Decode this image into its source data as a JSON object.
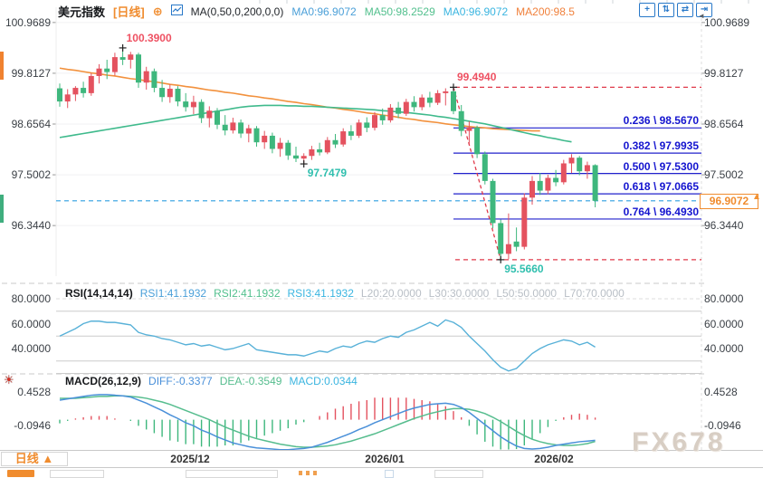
{
  "header": {
    "symbol": "美元指数",
    "timeframe": "[日线]",
    "plus_icon": "⊕",
    "ma_settings": "MA(0,50,0,200,0,0)",
    "ma_values": [
      {
        "label": "MA0:96.9072",
        "color": "#4a9fd8"
      },
      {
        "label": "MA50:98.2529",
        "color": "#53c08e"
      },
      {
        "label": "MA0:96.9072",
        "color": "#3ab5e0"
      },
      {
        "label": "MA200:98.5",
        "color": "#f0813c"
      }
    ]
  },
  "toolbar": {
    "icons": [
      {
        "name": "crosshair",
        "glyph": "+"
      },
      {
        "name": "fit-vertical",
        "glyph": "⇅"
      },
      {
        "name": "fit-horizontal",
        "glyph": "⇄"
      },
      {
        "name": "shift-right",
        "glyph": "⇥"
      }
    ]
  },
  "rsi_header": {
    "name": "RSI(14,14,14)",
    "values": [
      {
        "label": "RSI1:41.1932",
        "color": "#4a9fd8"
      },
      {
        "label": "RSI2:41.1932",
        "color": "#53c08e"
      },
      {
        "label": "RSI3:41.1932",
        "color": "#3ab5e0"
      }
    ],
    "levels": [
      {
        "label": "L20:20.0000"
      },
      {
        "label": "L30:30.0000"
      },
      {
        "label": "L50:50.0000"
      },
      {
        "label": "L70:70.0000"
      }
    ]
  },
  "macd_header": {
    "name": "MACD(26,12,9)",
    "values": [
      {
        "label": "DIFF:-0.3377",
        "color": "#4a90d9"
      },
      {
        "label": "DEA:-0.3549",
        "color": "#56bd8e"
      },
      {
        "label": "MACD:0.0344",
        "color": "#3ab5e0"
      }
    ]
  },
  "bottom_axis": {
    "timeframe_button": "日线 ▲",
    "dates": [
      {
        "label": "2025/12",
        "x": 210
      },
      {
        "label": "2026/01",
        "x": 425
      },
      {
        "label": "2026/02",
        "x": 612
      }
    ]
  },
  "watermark": "FX678",
  "chart_data": [
    {
      "type": "candlestick",
      "title": "美元指数 [日线]",
      "ylim": [
        95.2,
        101.3
      ],
      "y_ticks": [
        {
          "label": "100.9689",
          "value": 100.9689
        },
        {
          "label": "99.8127",
          "value": 99.8127
        },
        {
          "label": "98.6564",
          "value": 98.6564
        },
        {
          "label": "97.5002",
          "value": 97.5002
        },
        {
          "label": "96.3440",
          "value": 96.344
        }
      ],
      "x_ticks": [
        {
          "label": "2025/12",
          "x": 210
        },
        {
          "label": "2026/01",
          "x": 425
        },
        {
          "label": "2026/02",
          "x": 612
        }
      ],
      "colors": {
        "up": "#e4525f",
        "down": "#3eb77d",
        "ma50": "#3fba8c",
        "ma200": "#f2913d",
        "fib": "#2020cc",
        "alert": "#e0394a",
        "current": "#2f9fe0"
      },
      "candles": [
        [
          99.47,
          99.58,
          99.05,
          99.17
        ],
        [
          99.17,
          99.45,
          99.02,
          99.33
        ],
        [
          99.33,
          99.52,
          99.18,
          99.48
        ],
        [
          99.48,
          99.62,
          99.26,
          99.36
        ],
        [
          99.36,
          99.82,
          99.3,
          99.75
        ],
        [
          99.75,
          100.02,
          99.58,
          99.92
        ],
        [
          99.92,
          100.12,
          99.68,
          99.84
        ],
        [
          99.84,
          100.28,
          99.76,
          100.18
        ],
        [
          100.18,
          100.39,
          100.0,
          100.12
        ],
        [
          100.12,
          100.3,
          99.92,
          100.24
        ],
        [
          100.24,
          100.28,
          99.48,
          99.6
        ],
        [
          99.6,
          99.96,
          99.44,
          99.86
        ],
        [
          99.86,
          99.92,
          99.38,
          99.48
        ],
        [
          99.48,
          99.66,
          99.16,
          99.27
        ],
        [
          99.27,
          99.56,
          99.14,
          99.46
        ],
        [
          99.46,
          99.52,
          99.06,
          99.17
        ],
        [
          99.17,
          99.36,
          98.94,
          99.04
        ],
        [
          99.04,
          99.3,
          98.88,
          99.16
        ],
        [
          99.16,
          99.22,
          98.68,
          98.79
        ],
        [
          98.79,
          99.06,
          98.58,
          98.96
        ],
        [
          98.96,
          99.02,
          98.54,
          98.64
        ],
        [
          98.64,
          98.86,
          98.4,
          98.51
        ],
        [
          98.51,
          98.8,
          98.44,
          98.69
        ],
        [
          98.69,
          98.76,
          98.34,
          98.44
        ],
        [
          98.44,
          98.64,
          98.24,
          98.56
        ],
        [
          98.56,
          98.61,
          98.14,
          98.24
        ],
        [
          98.24,
          98.5,
          98.09,
          98.39
        ],
        [
          98.39,
          98.46,
          97.99,
          98.09
        ],
        [
          98.09,
          98.34,
          97.91,
          98.23
        ],
        [
          98.23,
          98.29,
          97.84,
          97.94
        ],
        [
          97.94,
          98.14,
          97.79,
          97.87
        ],
        [
          97.87,
          97.99,
          97.7479,
          97.93
        ],
        [
          97.93,
          98.16,
          97.84,
          98.08
        ],
        [
          98.08,
          98.23,
          97.94,
          98.01
        ],
        [
          98.01,
          98.36,
          97.97,
          98.29
        ],
        [
          98.29,
          98.43,
          98.11,
          98.19
        ],
        [
          98.19,
          98.56,
          98.14,
          98.49
        ],
        [
          98.49,
          98.63,
          98.29,
          98.39
        ],
        [
          98.39,
          98.76,
          98.34,
          98.69
        ],
        [
          98.69,
          98.81,
          98.47,
          98.57
        ],
        [
          98.57,
          98.93,
          98.51,
          98.86
        ],
        [
          98.86,
          99.01,
          98.64,
          98.74
        ],
        [
          98.74,
          99.11,
          98.69,
          99.03
        ],
        [
          99.03,
          99.16,
          98.79,
          98.89
        ],
        [
          98.89,
          99.23,
          98.84,
          99.16
        ],
        [
          99.16,
          99.29,
          98.94,
          99.04
        ],
        [
          99.04,
          99.33,
          98.97,
          99.26
        ],
        [
          99.26,
          99.39,
          99.04,
          99.14
        ],
        [
          99.14,
          99.43,
          99.09,
          99.36
        ],
        [
          99.36,
          99.47,
          99.08,
          99.4
        ],
        [
          99.4,
          99.494,
          98.88,
          98.95
        ],
        [
          98.95,
          99.09,
          98.38,
          98.5
        ],
        [
          98.5,
          98.72,
          98.2,
          98.58
        ],
        [
          98.58,
          98.62,
          97.88,
          97.97
        ],
        [
          97.97,
          98.03,
          97.28,
          97.36
        ],
        [
          97.36,
          97.41,
          96.28,
          96.4
        ],
        [
          96.4,
          96.48,
          95.566,
          95.7
        ],
        [
          95.7,
          96.62,
          95.58,
          95.92
        ],
        [
          95.98,
          96.3,
          95.76,
          95.86
        ],
        [
          95.86,
          97.08,
          95.8,
          96.98
        ],
        [
          96.98,
          97.47,
          96.82,
          97.36
        ],
        [
          97.36,
          97.54,
          97.04,
          97.14
        ],
        [
          97.14,
          97.5,
          97.06,
          97.43
        ],
        [
          97.43,
          97.61,
          97.24,
          97.33
        ],
        [
          97.33,
          97.84,
          97.28,
          97.76
        ],
        [
          97.76,
          97.97,
          97.54,
          97.89
        ],
        [
          97.89,
          97.93,
          97.49,
          97.58
        ],
        [
          97.58,
          97.8,
          97.41,
          97.72
        ],
        [
          97.72,
          97.74,
          96.76,
          96.9072
        ]
      ],
      "ma50": [
        98.35,
        98.38,
        98.41,
        98.44,
        98.47,
        98.5,
        98.53,
        98.56,
        98.59,
        98.62,
        98.65,
        98.68,
        98.71,
        98.74,
        98.77,
        98.8,
        98.83,
        98.86,
        98.89,
        98.92,
        98.95,
        98.98,
        99.01,
        99.04,
        99.06,
        99.07,
        99.08,
        99.08,
        99.08,
        99.07,
        99.07,
        99.06,
        99.06,
        99.05,
        99.04,
        99.03,
        99.02,
        99.01,
        99.0,
        98.99,
        98.98,
        98.96,
        98.95,
        98.93,
        98.92,
        98.9,
        98.88,
        98.86,
        98.83,
        98.81,
        98.78,
        98.75,
        98.72,
        98.69,
        98.66,
        98.62,
        98.58,
        98.54,
        98.5,
        98.46,
        98.42,
        98.39,
        98.35,
        98.32,
        98.28,
        98.25,
        null,
        null,
        null
      ],
      "ma200": [
        99.93,
        99.9,
        99.88,
        99.85,
        99.82,
        99.8,
        99.77,
        99.75,
        99.72,
        99.69,
        99.67,
        99.64,
        99.62,
        99.59,
        99.56,
        99.54,
        99.51,
        99.49,
        99.46,
        99.43,
        99.41,
        99.38,
        99.36,
        99.33,
        99.3,
        99.28,
        99.25,
        99.23,
        99.2,
        99.17,
        99.15,
        99.12,
        99.1,
        99.07,
        99.04,
        99.02,
        98.99,
        98.97,
        98.94,
        98.91,
        98.89,
        98.86,
        98.84,
        98.81,
        98.78,
        98.76,
        98.73,
        98.71,
        98.69,
        98.66,
        98.64,
        98.62,
        98.6,
        98.58,
        98.57,
        98.55,
        98.54,
        98.53,
        98.52,
        98.51,
        98.5,
        98.5,
        null,
        null,
        null,
        null,
        null,
        null,
        null
      ],
      "fib_levels": [
        {
          "label": "0.236 \\ 98.5670",
          "value": 98.567
        },
        {
          "label": "0.382 \\ 97.9935",
          "value": 97.9935
        },
        {
          "label": "0.500 \\ 97.5300",
          "value": 97.53
        },
        {
          "label": "0.618 \\ 97.0665",
          "value": 97.0665
        },
        {
          "label": "0.764 \\ 96.4930",
          "value": 96.493
        }
      ],
      "fib_start_candle": 50,
      "dashed_levels": [
        {
          "value": 99.494
        },
        {
          "value": 95.566
        }
      ],
      "trend_line": {
        "from_candle": 50,
        "from_price": 99.494,
        "to_candle": 56,
        "to_price": 95.566
      },
      "current_price": {
        "label": "96.9072",
        "value": 96.9072
      },
      "annotations": [
        {
          "text": "100.3900",
          "candle": 8,
          "price": 100.39,
          "position": "above",
          "color": "#ee5162"
        },
        {
          "text": "99.4940",
          "candle": 50,
          "price": 99.494,
          "position": "above",
          "color": "#ee5162"
        },
        {
          "text": "97.7479",
          "candle": 31,
          "price": 97.7479,
          "position": "below",
          "color": "#2fbfae"
        },
        {
          "text": "95.5660",
          "candle": 56,
          "price": 95.566,
          "position": "below",
          "color": "#2fbfae"
        }
      ]
    },
    {
      "type": "line",
      "name": "RSI(14,14,14)",
      "color": "#58b1d8",
      "ylim": [
        15,
        90
      ],
      "y_ticks": [
        {
          "label": "80.0000",
          "value": 80
        },
        {
          "label": "60.0000",
          "value": 60
        },
        {
          "label": "40.0000",
          "value": 40
        }
      ],
      "gridline_dashed": 80,
      "gridlines": [
        70,
        50,
        30,
        20
      ],
      "values": [
        50,
        53,
        56,
        60,
        62,
        62,
        61,
        61,
        60,
        59,
        53,
        51,
        50,
        48,
        47,
        45,
        43,
        44,
        42,
        43,
        41,
        39,
        40,
        42,
        44,
        39,
        38,
        37,
        36,
        35,
        35,
        34,
        36,
        38,
        37,
        40,
        42,
        41,
        44,
        46,
        45,
        48,
        50,
        49,
        53,
        55,
        58,
        61,
        58,
        63,
        61,
        57,
        50,
        44,
        38,
        31,
        25,
        22,
        24,
        30,
        36,
        40,
        43,
        45,
        47,
        46,
        43,
        45,
        41.19
      ]
    },
    {
      "type": "macd",
      "name": "MACD(26,12,9)",
      "colors": {
        "diff": "#4a90d9",
        "dea": "#56bd8e",
        "hist_pos": "#e4525f",
        "hist_neg": "#3eb77d"
      },
      "ylim": [
        -0.49,
        0.57
      ],
      "y_ticks": [
        {
          "label": "0.4528",
          "value": 0.4528
        },
        {
          "label": "-0.0946",
          "value": -0.0946
        }
      ],
      "diff": [
        0.32,
        0.34,
        0.36,
        0.38,
        0.4,
        0.41,
        0.41,
        0.4,
        0.39,
        0.37,
        0.32,
        0.27,
        0.21,
        0.15,
        0.08,
        0.02,
        -0.05,
        -0.1,
        -0.17,
        -0.22,
        -0.28,
        -0.33,
        -0.38,
        -0.41,
        -0.44,
        -0.46,
        -0.47,
        -0.48,
        -0.49,
        -0.49,
        -0.48,
        -0.47,
        -0.45,
        -0.41,
        -0.37,
        -0.32,
        -0.27,
        -0.22,
        -0.16,
        -0.11,
        -0.05,
        0.0,
        0.05,
        0.1,
        0.15,
        0.19,
        0.22,
        0.25,
        0.26,
        0.27,
        0.25,
        0.2,
        0.12,
        0.02,
        -0.08,
        -0.18,
        -0.28,
        -0.36,
        -0.43,
        -0.47,
        -0.48,
        -0.47,
        -0.45,
        -0.42,
        -0.4,
        -0.38,
        -0.36,
        -0.35,
        -0.3377
      ],
      "dea": [
        0.35,
        0.35,
        0.35,
        0.36,
        0.37,
        0.38,
        0.38,
        0.39,
        0.39,
        0.38,
        0.37,
        0.35,
        0.32,
        0.29,
        0.25,
        0.2,
        0.15,
        0.1,
        0.05,
        0.0,
        -0.06,
        -0.12,
        -0.17,
        -0.22,
        -0.27,
        -0.31,
        -0.34,
        -0.37,
        -0.4,
        -0.42,
        -0.44,
        -0.45,
        -0.45,
        -0.44,
        -0.43,
        -0.41,
        -0.38,
        -0.35,
        -0.31,
        -0.27,
        -0.23,
        -0.18,
        -0.13,
        -0.08,
        -0.03,
        0.02,
        0.06,
        0.1,
        0.13,
        0.16,
        0.18,
        0.18,
        0.17,
        0.14,
        0.1,
        0.04,
        -0.03,
        -0.11,
        -0.19,
        -0.26,
        -0.32,
        -0.36,
        -0.39,
        -0.41,
        -0.42,
        -0.42,
        -0.41,
        -0.39,
        -0.3549
      ],
      "hist": [
        -0.06,
        -0.02,
        0.02,
        0.04,
        0.06,
        0.06,
        0.06,
        0.02,
        0.0,
        -0.02,
        -0.1,
        -0.16,
        -0.22,
        -0.28,
        -0.34,
        -0.36,
        -0.4,
        -0.4,
        -0.44,
        -0.44,
        -0.44,
        -0.42,
        -0.42,
        -0.38,
        -0.34,
        -0.3,
        -0.26,
        -0.22,
        -0.18,
        -0.14,
        -0.08,
        -0.04,
        0.0,
        0.06,
        0.12,
        0.18,
        0.22,
        0.26,
        0.3,
        0.32,
        0.36,
        0.36,
        0.36,
        0.36,
        0.36,
        0.34,
        0.32,
        0.3,
        0.26,
        0.22,
        0.14,
        0.04,
        -0.1,
        -0.24,
        -0.36,
        -0.44,
        -0.5,
        -0.5,
        -0.48,
        -0.42,
        -0.32,
        -0.22,
        -0.12,
        -0.02,
        0.04,
        0.08,
        0.1,
        0.08,
        0.0344
      ]
    }
  ]
}
